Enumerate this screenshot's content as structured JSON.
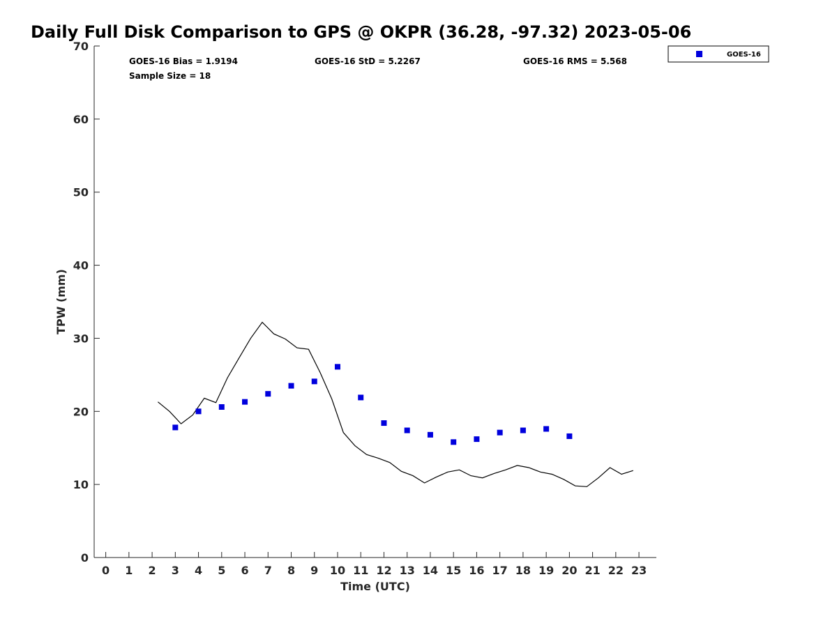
{
  "chart_data": {
    "type": "scatter",
    "title": "Daily Full Disk Comparison to GPS @ OKPR (36.28, -97.32) 2023-05-06",
    "xlabel": "Time (UTC)",
    "ylabel": "TPW (mm)",
    "xlim": [
      -0.5,
      23.75
    ],
    "ylim": [
      0,
      70
    ],
    "xticks": [
      0,
      1,
      2,
      3,
      4,
      5,
      6,
      7,
      8,
      9,
      10,
      11,
      12,
      13,
      14,
      15,
      16,
      17,
      18,
      19,
      20,
      21,
      22,
      23
    ],
    "yticks": [
      0,
      10,
      20,
      30,
      40,
      50,
      60,
      70
    ],
    "grid": false,
    "legend_position": "top-right",
    "stats": {
      "bias": "GOES-16 Bias = 1.9194",
      "std": "GOES-16 StD = 5.2267",
      "rms": "GOES-16 RMS = 5.568",
      "sample": "Sample Size = 18"
    },
    "series": [
      {
        "name": "GOES-16",
        "style": "square-markers",
        "color": "#0000dd",
        "x": [
          3,
          4,
          5,
          6,
          7,
          8,
          9,
          10,
          11,
          12,
          13,
          14,
          15,
          16,
          17,
          18,
          19,
          20
        ],
        "y": [
          17.8,
          20.0,
          20.6,
          21.3,
          22.4,
          23.5,
          24.1,
          26.1,
          21.9,
          18.4,
          17.4,
          16.8,
          15.8,
          16.2,
          17.1,
          17.4,
          17.6,
          16.6
        ]
      },
      {
        "style": "line",
        "color": "#000000",
        "x": [
          2.25,
          2.75,
          3.25,
          3.75,
          4.25,
          4.75,
          5.25,
          5.75,
          6.25,
          6.75,
          7.25,
          7.75,
          8.25,
          8.75,
          9.25,
          9.75,
          10.25,
          10.75,
          11.25,
          11.75,
          12.25,
          12.75,
          13.25,
          13.75,
          14.25,
          14.75,
          15.25,
          15.75,
          16.25,
          16.75,
          17.25,
          17.75,
          18.25,
          18.75,
          19.25,
          19.75,
          20.25,
          20.75,
          21.25,
          21.75,
          22.25,
          22.75
        ],
        "y": [
          21.3,
          20.0,
          18.3,
          19.5,
          21.8,
          21.2,
          24.6,
          27.3,
          30.0,
          32.2,
          30.6,
          29.9,
          28.7,
          28.5,
          25.3,
          21.7,
          17.1,
          15.3,
          14.1,
          13.6,
          13.0,
          11.8,
          11.2,
          10.2,
          11.0,
          11.7,
          12.0,
          11.2,
          10.9,
          11.5,
          12.0,
          12.6,
          12.3,
          11.7,
          11.4,
          10.7,
          9.8,
          9.7,
          10.9,
          12.3,
          11.4,
          11.9
        ]
      }
    ]
  }
}
